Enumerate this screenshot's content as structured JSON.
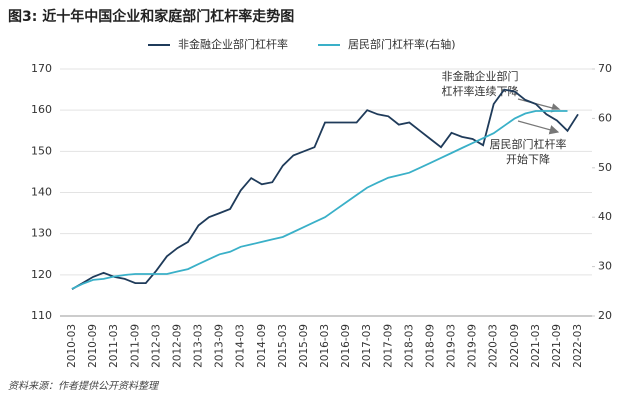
{
  "chart_data": {
    "type": "line",
    "title": "图3: 近十年中国企业和家庭部门杠杆率走势图",
    "source": "资料来源：作者提供公开资料整理",
    "categories": [
      "2010-03",
      null,
      "2010-09",
      null,
      "2011-03",
      null,
      "2011-09",
      null,
      "2012-03",
      null,
      "2012-09",
      null,
      "2013-03",
      null,
      "2013-09",
      null,
      "2014-03",
      null,
      "2014-09",
      null,
      "2015-03",
      null,
      "2015-09",
      null,
      "2016-03",
      null,
      "2016-09",
      null,
      "2017-03",
      null,
      "2017-09",
      null,
      "2018-03",
      null,
      "2018-09",
      null,
      "2019-03",
      null,
      "2019-09",
      null,
      "2020-03",
      null,
      "2020-09",
      null,
      "2021-03",
      null,
      "2021-09",
      null,
      "2022-03"
    ],
    "series": [
      {
        "name": "非金融企业部门杠杆率",
        "color": "#1f3b5a",
        "values": [
          116.5,
          118,
          119.5,
          120.5,
          119.5,
          119,
          118,
          118,
          121,
          124.5,
          126.5,
          128,
          132,
          134,
          135,
          136,
          140.5,
          143.5,
          142,
          142.5,
          146.5,
          149,
          150,
          151,
          157,
          157,
          157,
          157,
          160,
          159,
          158.5,
          156.5,
          157,
          155,
          153,
          151,
          154.5,
          153.5,
          153,
          151.5,
          161.5,
          165,
          164.5,
          162.5,
          161.5,
          159,
          157.5,
          155,
          159
        ]
      },
      {
        "name": "居民部门杠杆率(右轴)",
        "color": "#3ab0c8",
        "axis": "y2",
        "values": [
          25.5,
          26.5,
          27.3,
          27.5,
          28,
          28.3,
          28.5,
          28.5,
          28.5,
          28.5,
          29,
          29.5,
          30.5,
          31.5,
          32.5,
          33,
          34,
          34.5,
          35,
          35.5,
          36,
          37,
          38,
          39,
          40,
          41.5,
          43,
          44.5,
          46,
          47,
          48,
          48.5,
          49,
          50,
          51,
          52,
          53,
          54,
          55,
          56,
          57,
          58.5,
          60,
          61,
          61.5,
          61.5,
          61.5,
          61.5,
          null
        ]
      }
    ],
    "ylim": [
      110,
      170
    ],
    "yticks": [
      110,
      120,
      130,
      140,
      150,
      160,
      170
    ],
    "y2lim": [
      20,
      70
    ],
    "y2ticks": [
      20,
      30,
      40,
      50,
      60,
      70
    ],
    "grid": true,
    "annotations": [
      {
        "text": [
          "非金融企业部门",
          "杠杆率连续下降"
        ]
      },
      {
        "text": [
          "居民部门杠杆率",
          "开始下降"
        ]
      }
    ]
  }
}
